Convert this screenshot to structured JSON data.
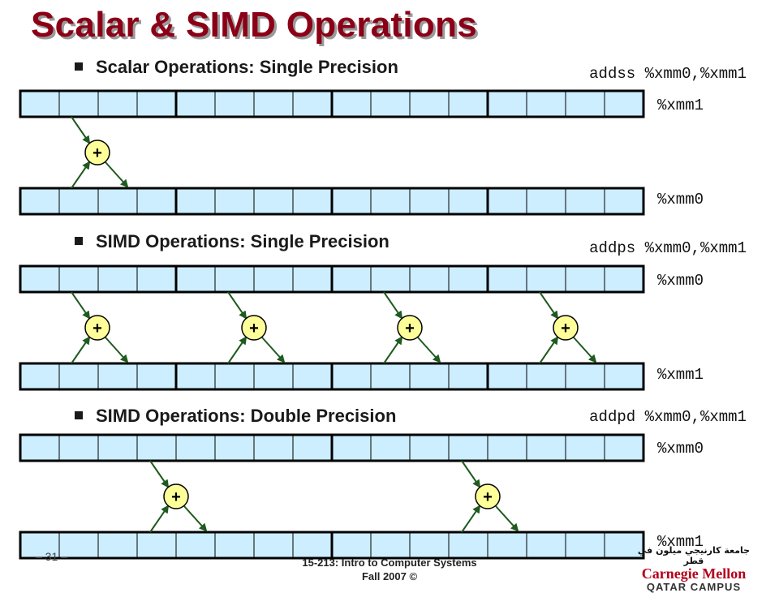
{
  "title": "Scalar & SIMD Operations",
  "sections": [
    {
      "heading": "Scalar Operations: Single Precision",
      "instruction": "addss %xmm0,%xmm1",
      "top_register": "%xmm1",
      "bottom_register": "%xmm0"
    },
    {
      "heading": "SIMD Operations: Single Precision",
      "instruction": "addps %xmm0,%xmm1",
      "top_register": "%xmm0",
      "bottom_register": "%xmm1"
    },
    {
      "heading": "SIMD Operations: Double Precision",
      "instruction": "addpd %xmm0,%xmm1",
      "top_register": "%xmm0",
      "bottom_register": "%xmm1"
    }
  ],
  "adder_symbol": "+",
  "footer": {
    "page_number": "– 31 –",
    "course": "15-213: Intro to Computer Systems",
    "term": "Fall 2007 ©"
  },
  "logo": {
    "arabic": "جامعة كارنيجي ميلون في قطر",
    "name": "Carnegie Mellon",
    "campus": "QATAR CAMPUS"
  },
  "colors": {
    "title": "#8b0016",
    "cell_fill": "#cceeff",
    "arrow": "#1f5a1f",
    "adder_fill": "#ffff99"
  }
}
